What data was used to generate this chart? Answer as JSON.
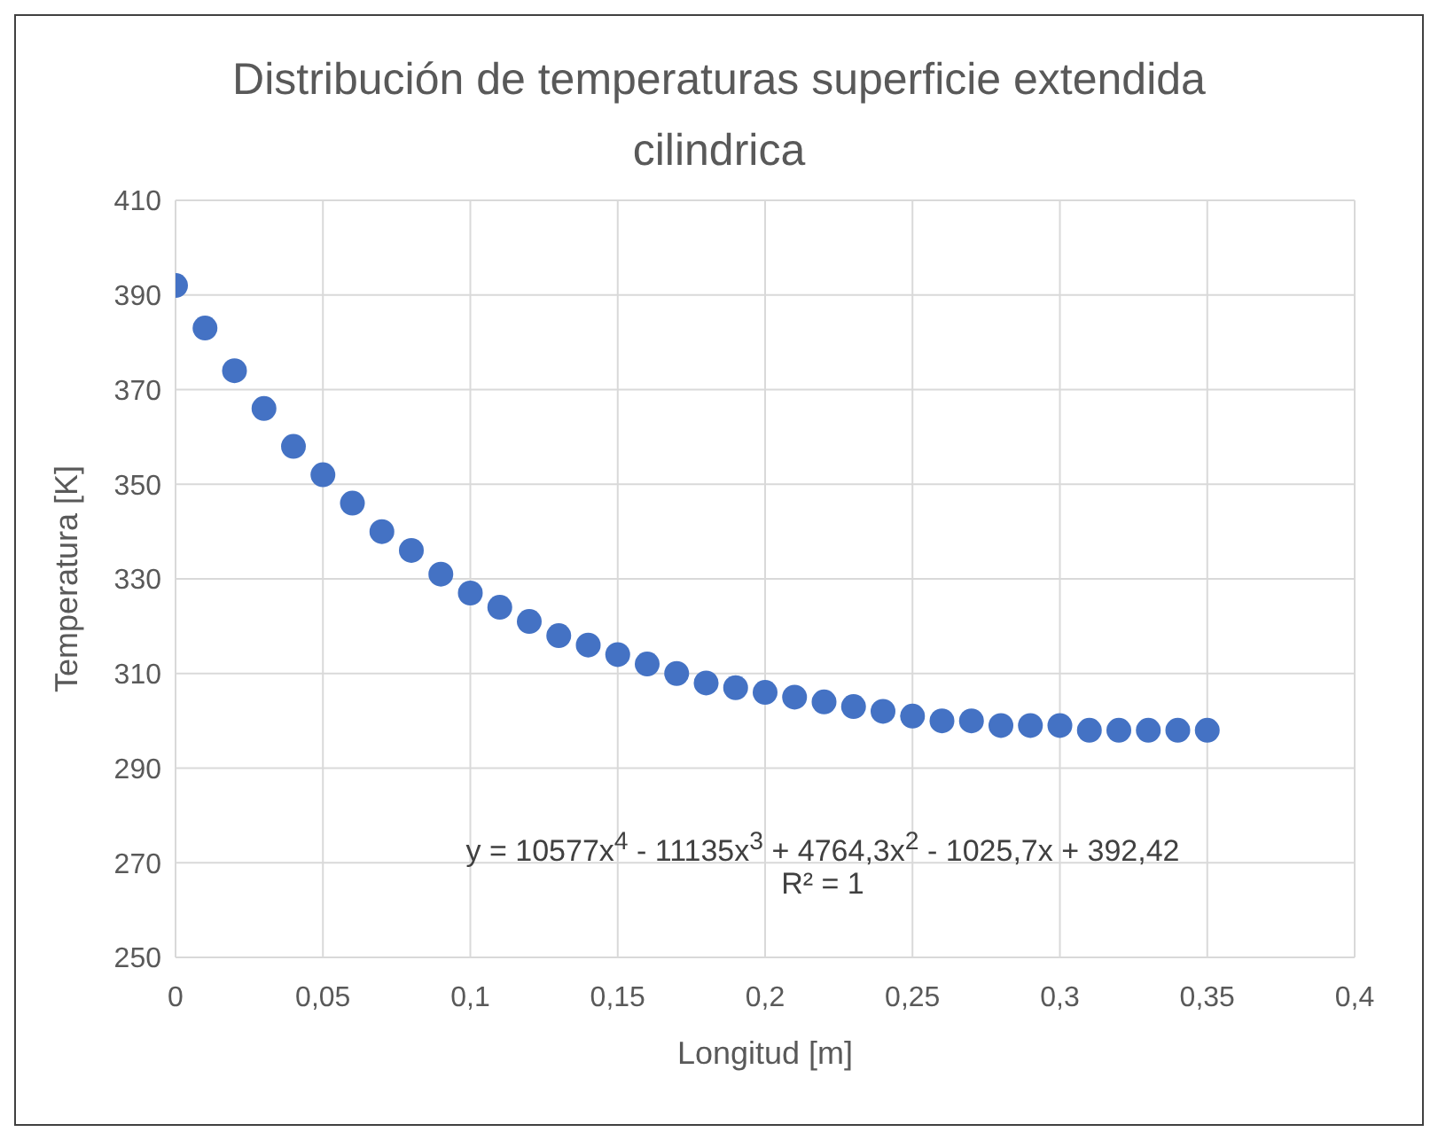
{
  "chart_data": {
    "type": "scatter",
    "title": "Distribución de temperaturas superficie extendida cilindrica",
    "xlabel": "Longitud [m]",
    "ylabel": "Temperatura [K]",
    "x": [
      0,
      0.01,
      0.02,
      0.03,
      0.04,
      0.05,
      0.06,
      0.07,
      0.08,
      0.09,
      0.1,
      0.11,
      0.12,
      0.13,
      0.14,
      0.15,
      0.16,
      0.17,
      0.18,
      0.19,
      0.2,
      0.21,
      0.22,
      0.23,
      0.24,
      0.25,
      0.26,
      0.27,
      0.28,
      0.29,
      0.3,
      0.31,
      0.32,
      0.33,
      0.34,
      0.35
    ],
    "series": [
      {
        "color": "#4472c4",
        "values": [
          392,
          383,
          374,
          366,
          358,
          352,
          346,
          340,
          336,
          331,
          327,
          324,
          321,
          318,
          316,
          314,
          312,
          310,
          308,
          307,
          306,
          305,
          304,
          303,
          302,
          301,
          300,
          300,
          299,
          299,
          299,
          298,
          298,
          298,
          298,
          298
        ]
      }
    ],
    "xlim": [
      0,
      0.4
    ],
    "xticks": [
      0,
      {
        "value": 0.05,
        "label": "0,05"
      },
      {
        "value": 0.1,
        "label": "0,1"
      },
      {
        "value": 0.15,
        "label": "0,15"
      },
      {
        "value": 0.2,
        "label": "0,2"
      },
      {
        "value": 0.25,
        "label": "0,25"
      },
      {
        "value": 0.3,
        "label": "0,3"
      },
      {
        "value": 0.35,
        "label": "0,35"
      },
      {
        "value": 0.4,
        "label": "0,4"
      }
    ],
    "ylim": [
      250,
      410
    ],
    "yticks": [
      250,
      270,
      290,
      310,
      330,
      350,
      370,
      390,
      410
    ],
    "grid": true,
    "marker": "circle",
    "annotations": [
      "y = 10577x$^{4}$ - 11135x$^{3}$ + 4764,3x$^{2}$ - 1025,7x + 392,42",
      "R² = 1"
    ]
  }
}
